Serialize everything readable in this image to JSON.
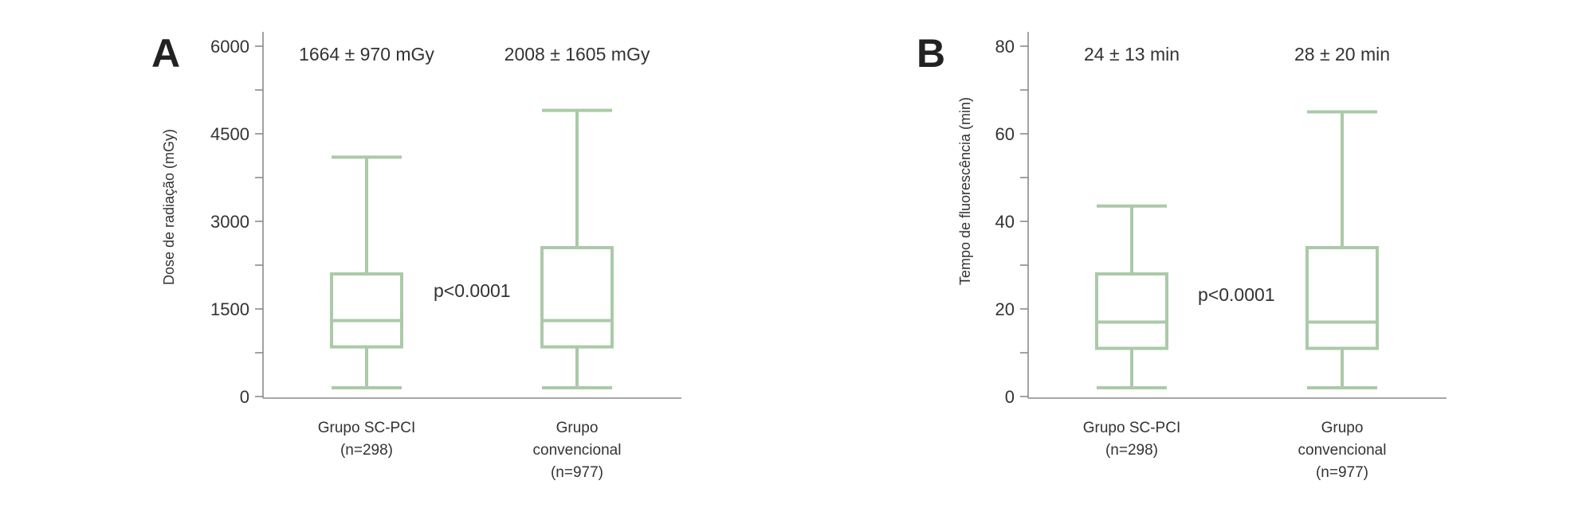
{
  "colors": {
    "box": "#abcaa8",
    "axis": "#8a8a8a",
    "text": "#333333"
  },
  "chart_data": [
    {
      "type": "box",
      "panel": "A",
      "ylabel": "Dose de radiação (mGy)",
      "ylim": [
        0,
        6000
      ],
      "yticks": [
        0,
        1500,
        3000,
        4500,
        6000
      ],
      "minor_ticks": [
        750,
        2250,
        3750,
        5250
      ],
      "p_value": "p<0.0001",
      "groups": [
        {
          "label_lines": [
            "Grupo SC-PCI",
            "(n=298)"
          ],
          "stat": "1664 ± 970 mGy",
          "min": 150,
          "q1": 850,
          "median": 1300,
          "q3": 2100,
          "max": 4100
        },
        {
          "label_lines": [
            "Grupo",
            "convencional",
            "(n=977)"
          ],
          "stat": "2008 ± 1605 mGy",
          "min": 150,
          "q1": 850,
          "median": 1300,
          "q3": 2550,
          "max": 4900
        }
      ]
    },
    {
      "type": "box",
      "panel": "B",
      "ylabel": "Tempo de fluorescência (min)",
      "ylim": [
        0,
        80
      ],
      "yticks": [
        0,
        20,
        40,
        60,
        80
      ],
      "minor_ticks": [
        10,
        30,
        50,
        70
      ],
      "p_value": "p<0.0001",
      "groups": [
        {
          "label_lines": [
            "Grupo SC-PCI",
            "(n=298)"
          ],
          "stat": "24 ± 13 min",
          "min": 2,
          "q1": 11,
          "median": 17,
          "q3": 28,
          "max": 43.5
        },
        {
          "label_lines": [
            "Grupo",
            "convencional",
            "(n=977)"
          ],
          "stat": "28 ± 20 min",
          "min": 2,
          "q1": 11,
          "median": 17,
          "q3": 34,
          "max": 65
        }
      ]
    }
  ]
}
